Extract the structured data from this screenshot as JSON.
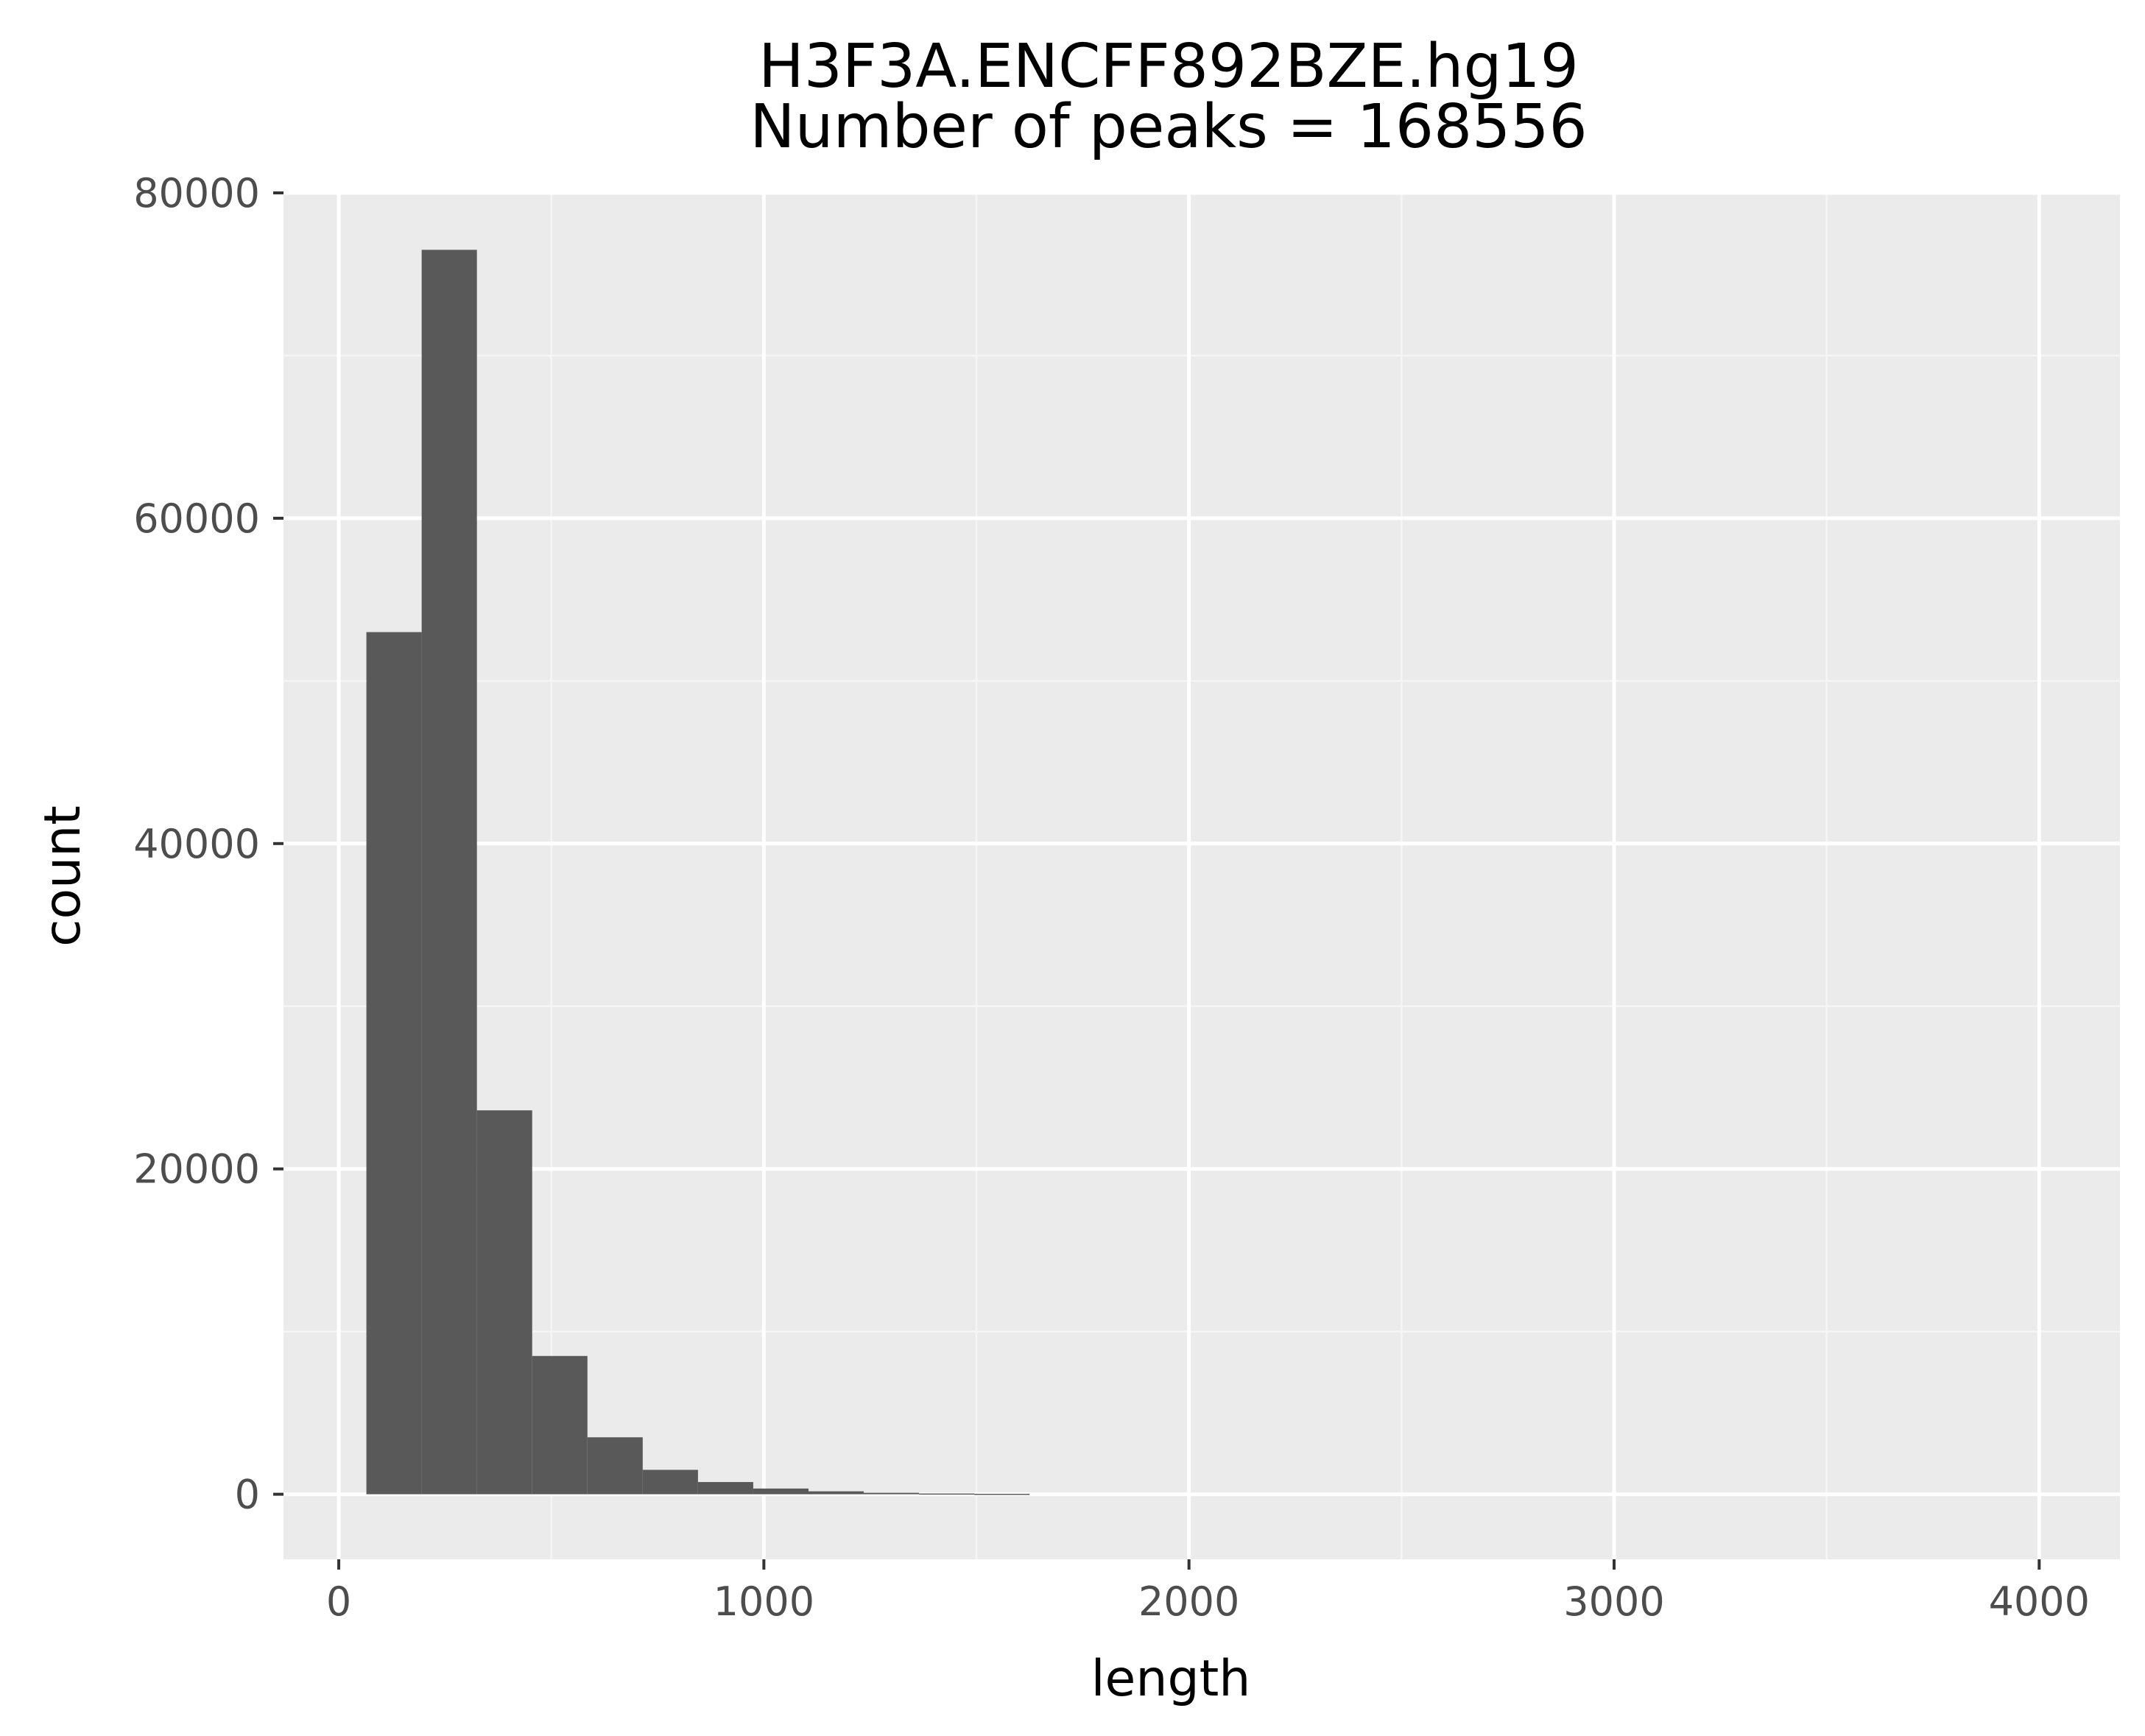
{
  "chart_data": {
    "type": "bar",
    "histogram": true,
    "title": "H3F3A.ENCFF892BZE.hg19",
    "subtitle": "Number of peaks = 168556",
    "xlabel": "length",
    "ylabel": "count",
    "xlim": [
      -130,
      4190
    ],
    "ylim": [
      -4000,
      80000
    ],
    "x_ticks": [
      0,
      1000,
      2000,
      3000,
      4000
    ],
    "x_tick_labels": [
      "0",
      "1000",
      "2000",
      "3000",
      "4000"
    ],
    "y_ticks": [
      0,
      20000,
      40000,
      60000,
      80000
    ],
    "y_tick_labels": [
      "0",
      "20000",
      "40000",
      "60000",
      "80000"
    ],
    "bin_width": 130,
    "bins": [
      {
        "start": 65,
        "end": 195,
        "count": 53000
      },
      {
        "start": 195,
        "end": 325,
        "count": 76500
      },
      {
        "start": 325,
        "end": 455,
        "count": 23600
      },
      {
        "start": 455,
        "end": 585,
        "count": 8500
      },
      {
        "start": 585,
        "end": 715,
        "count": 3500
      },
      {
        "start": 715,
        "end": 845,
        "count": 1500
      },
      {
        "start": 845,
        "end": 975,
        "count": 750
      },
      {
        "start": 975,
        "end": 1105,
        "count": 350
      },
      {
        "start": 1105,
        "end": 1235,
        "count": 180
      },
      {
        "start": 1235,
        "end": 1365,
        "count": 90
      },
      {
        "start": 1365,
        "end": 1495,
        "count": 45
      },
      {
        "start": 1495,
        "end": 1625,
        "count": 25
      }
    ],
    "grid": true,
    "colors": {
      "panel_background": "#ebebeb",
      "grid_major": "#ffffff",
      "grid_minor": "#f5f5f5",
      "bar_fill": "#595959",
      "tick_label": "#4d4d4d",
      "tick_mark": "#333333",
      "text": "#000000"
    }
  }
}
